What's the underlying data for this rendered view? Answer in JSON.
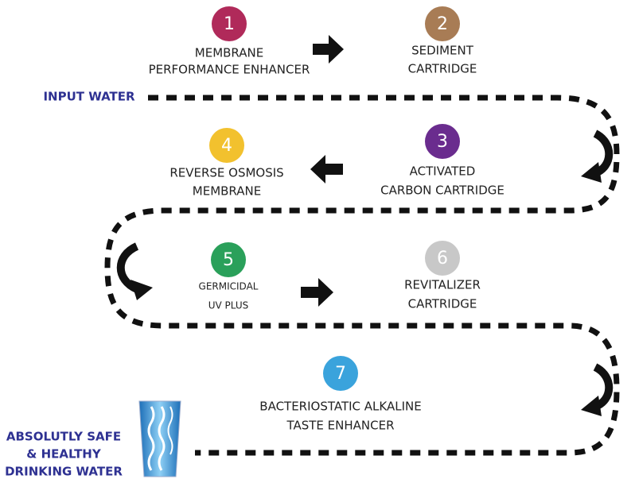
{
  "input_label": "INPUT WATER",
  "steps": [
    {
      "number": "1",
      "lines": [
        "MEMBRANE",
        "PERFORMANCE ENHANCER"
      ]
    },
    {
      "number": "2",
      "lines": [
        "SEDIMENT",
        "CARTRIDGE"
      ]
    },
    {
      "number": "3",
      "lines": [
        "ACTIVATED",
        "CARBON CARTRIDGE"
      ]
    },
    {
      "number": "4",
      "lines": [
        "REVERSE OSMOSIS",
        "MEMBRANE"
      ]
    },
    {
      "number": "5",
      "lines": [
        "GERMICIDAL",
        "UV PLUS"
      ]
    },
    {
      "number": "6",
      "lines": [
        "REVITALIZER",
        "CARTRIDGE"
      ]
    },
    {
      "number": "7",
      "lines": [
        "BACTERIOSTATIC ALKALINE",
        "TASTE ENHANCER"
      ]
    }
  ],
  "output_lines": [
    "ABSOLUTLY SAFE",
    "& HEALTHY",
    "DRINKING WATER"
  ]
}
